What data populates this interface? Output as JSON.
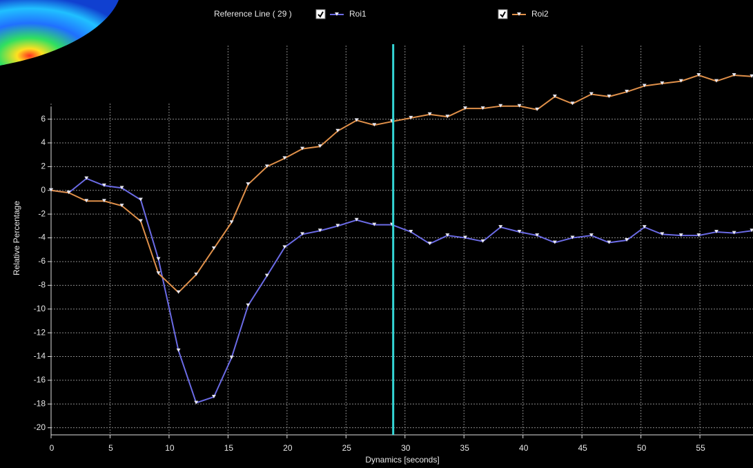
{
  "chart_data": {
    "type": "line",
    "x_label": "Dynamics [seconds]",
    "y_label": "Relative Percentage",
    "reference_label": "Reference Line ( 29 )",
    "reference_line": 29,
    "reference_color": "#35d6d6",
    "x": [
      0,
      1.5,
      3.0,
      4.5,
      6.0,
      7.6,
      9.1,
      10.8,
      12.3,
      13.8,
      15.3,
      16.7,
      18.3,
      19.8,
      21.3,
      22.8,
      24.3,
      25.9,
      27.4,
      28.9,
      30.5,
      32.1,
      33.6,
      35.1,
      36.6,
      38.1,
      39.7,
      41.2,
      42.7,
      44.2,
      45.8,
      47.3,
      48.8,
      50.3,
      51.8,
      53.4,
      54.9,
      56.4,
      57.9,
      59.4
    ],
    "series": [
      {
        "name": "Roi1",
        "color": "#6b6be6",
        "values": [
          0,
          -0.2,
          1.0,
          0.4,
          0.2,
          -0.8,
          -5.8,
          -13.5,
          -17.9,
          -17.4,
          -14.1,
          -9.7,
          -7.2,
          -4.8,
          -3.7,
          -3.4,
          -3.0,
          -2.5,
          -2.9,
          -2.9,
          -3.5,
          -4.5,
          -3.8,
          -4.0,
          -4.3,
          -3.1,
          -3.5,
          -3.8,
          -4.4,
          -4.0,
          -3.8,
          -4.4,
          -4.2,
          -3.1,
          -3.7,
          -3.8,
          -3.8,
          -3.5,
          -3.6,
          -3.4
        ]
      },
      {
        "name": "Roi2",
        "color": "#e0904a",
        "values": [
          0,
          -0.2,
          -0.9,
          -0.9,
          -1.3,
          -2.6,
          -7.0,
          -8.6,
          -7.1,
          -4.9,
          -2.7,
          0.5,
          2.0,
          2.7,
          3.5,
          3.7,
          5.0,
          5.9,
          5.5,
          5.8,
          6.1,
          6.4,
          6.2,
          6.9,
          6.9,
          7.1,
          7.1,
          6.8,
          7.9,
          7.3,
          8.1,
          7.9,
          8.3,
          8.8,
          9.0,
          9.2,
          9.7,
          9.2,
          9.7,
          9.6
        ]
      }
    ],
    "xlim": [
      0,
      59.5
    ],
    "ylim": [
      -20.6,
      12.2
    ],
    "xticks": [
      0,
      5,
      10,
      15,
      20,
      25,
      30,
      35,
      40,
      45,
      50,
      55
    ],
    "yticks": [
      -20,
      -18,
      -16,
      -14,
      -12,
      -10,
      -8,
      -6,
      -4,
      -2,
      0,
      2,
      4,
      6
    ],
    "grid": true
  }
}
